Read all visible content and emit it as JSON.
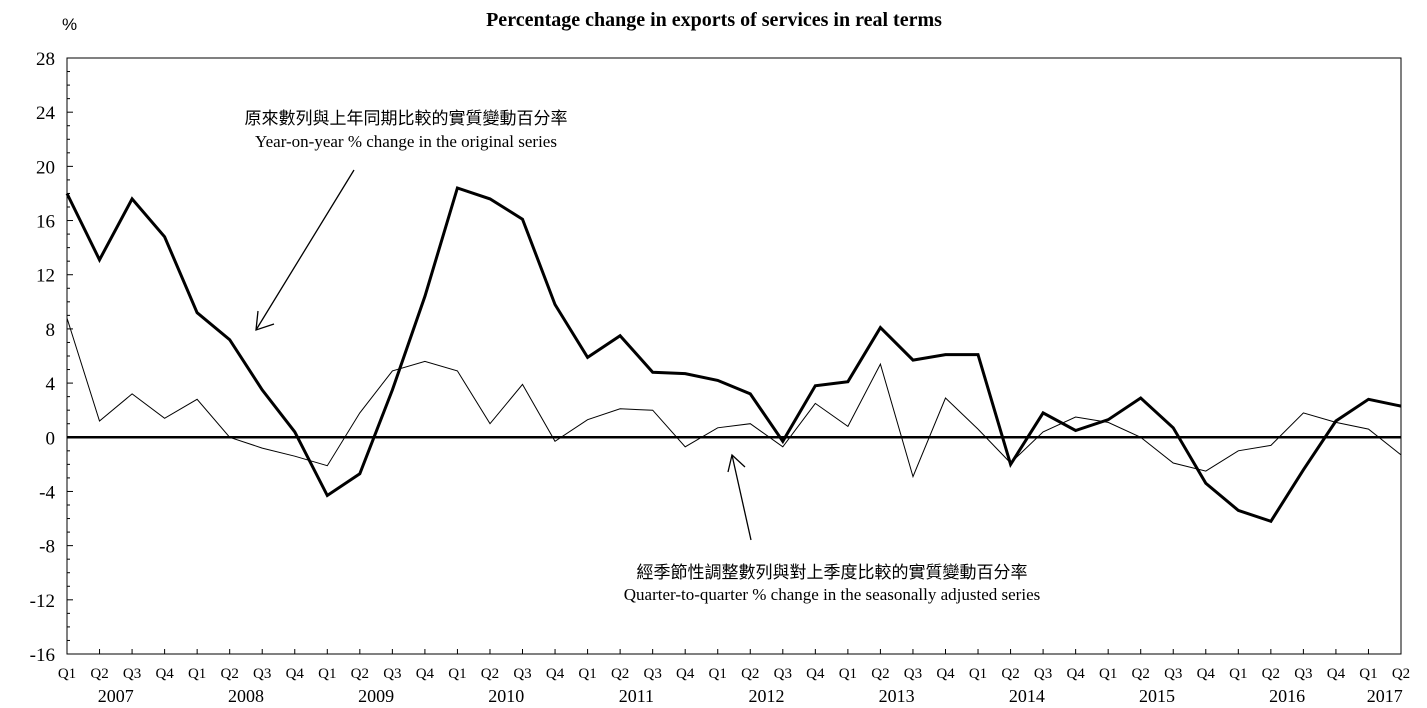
{
  "chart_data": {
    "type": "line",
    "title": "Percentage change in exports of services in real terms",
    "ylabel": "%",
    "ylim": [
      -16,
      28
    ],
    "yticks": [
      "28",
      "24",
      "20",
      "16",
      "12",
      "8",
      "4",
      "0",
      "-4",
      "-8",
      "-12",
      "-16"
    ],
    "quarters": [
      "Q1",
      "Q2",
      "Q3",
      "Q4",
      "Q1",
      "Q2",
      "Q3",
      "Q4",
      "Q1",
      "Q2",
      "Q3",
      "Q4",
      "Q1",
      "Q2",
      "Q3",
      "Q4",
      "Q1",
      "Q2",
      "Q3",
      "Q4",
      "Q1",
      "Q2",
      "Q3",
      "Q4",
      "Q1",
      "Q2",
      "Q3",
      "Q4",
      "Q1",
      "Q2",
      "Q3",
      "Q4",
      "Q1",
      "Q2",
      "Q3",
      "Q4",
      "Q1",
      "Q2",
      "Q3",
      "Q4",
      "Q1",
      "Q2"
    ],
    "years": [
      "2007",
      "2008",
      "2009",
      "2010",
      "2011",
      "2012",
      "2013",
      "2014",
      "2015",
      "2016",
      "2017"
    ],
    "grid": false,
    "series": [
      {
        "name": "Year-on-year % change in the original series",
        "values": [
          18.0,
          13.1,
          17.6,
          14.8,
          9.2,
          7.2,
          3.5,
          0.4,
          -4.3,
          -2.7,
          3.5,
          10.4,
          18.4,
          17.6,
          16.1,
          9.8,
          5.9,
          7.5,
          4.8,
          4.7,
          4.2,
          3.2,
          -0.3,
          3.8,
          4.1,
          8.1,
          5.7,
          6.1,
          6.1,
          -2.0,
          1.8,
          0.5,
          1.3,
          2.9,
          0.7,
          -3.4,
          -5.4,
          -6.2,
          -2.4,
          1.2,
          2.8,
          2.3
        ]
      },
      {
        "name": "Quarter-to-quarter % change in the seasonally adjusted series",
        "values": [
          8.8,
          1.2,
          3.2,
          1.4,
          2.8,
          0.0,
          -0.8,
          -1.4,
          -2.1,
          1.8,
          4.9,
          5.6,
          4.9,
          1.0,
          3.9,
          -0.3,
          1.3,
          2.1,
          2.0,
          -0.7,
          0.7,
          1.0,
          -0.7,
          2.5,
          0.8,
          5.4,
          -2.9,
          2.9,
          0.6,
          -1.9,
          0.4,
          1.5,
          1.1,
          0.0,
          -1.9,
          -2.5,
          -1.0,
          -0.6,
          1.8,
          1.1,
          0.6,
          -1.3
        ]
      }
    ],
    "annotations": {
      "yoy_zh": "原來數列與上年同期比較的實質變動百分率",
      "yoy_en": "Year-on-year % change in the original series",
      "qoq_zh": "經季節性調整數列與對上季度比較的實質變動百分率",
      "qoq_en": "Quarter-to-quarter % change in the seasonally adjusted series"
    }
  }
}
